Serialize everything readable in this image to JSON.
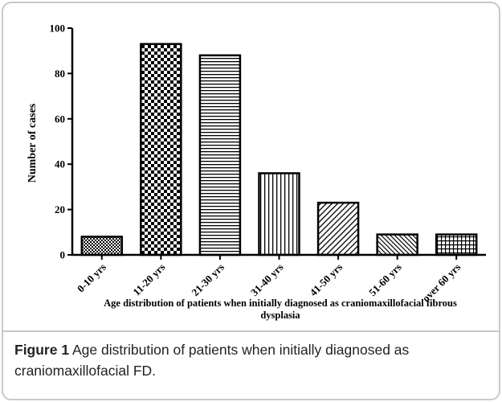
{
  "chart_data": {
    "type": "bar",
    "ylabel": "Number of cases",
    "xlabel": "Age distribution of patients when initially diagnosed as craniomaxillofacial fibrous dysplasia",
    "caption_label": "Figure 1",
    "caption": "Age distribution of patients when initially diagnosed as craniomaxillofacial FD.",
    "categories": [
      "0-10 yrs",
      "11-20 yrs",
      "21-30 yrs",
      "31-40 yrs",
      "41-50 yrs",
      "51-60 yrs",
      "over 60 yrs"
    ],
    "values": [
      8,
      93,
      88,
      36,
      23,
      9,
      9
    ],
    "color": "#000000",
    "ylim": [
      0,
      100
    ],
    "yticks": [
      0,
      20,
      40,
      60,
      80,
      100
    ]
  }
}
